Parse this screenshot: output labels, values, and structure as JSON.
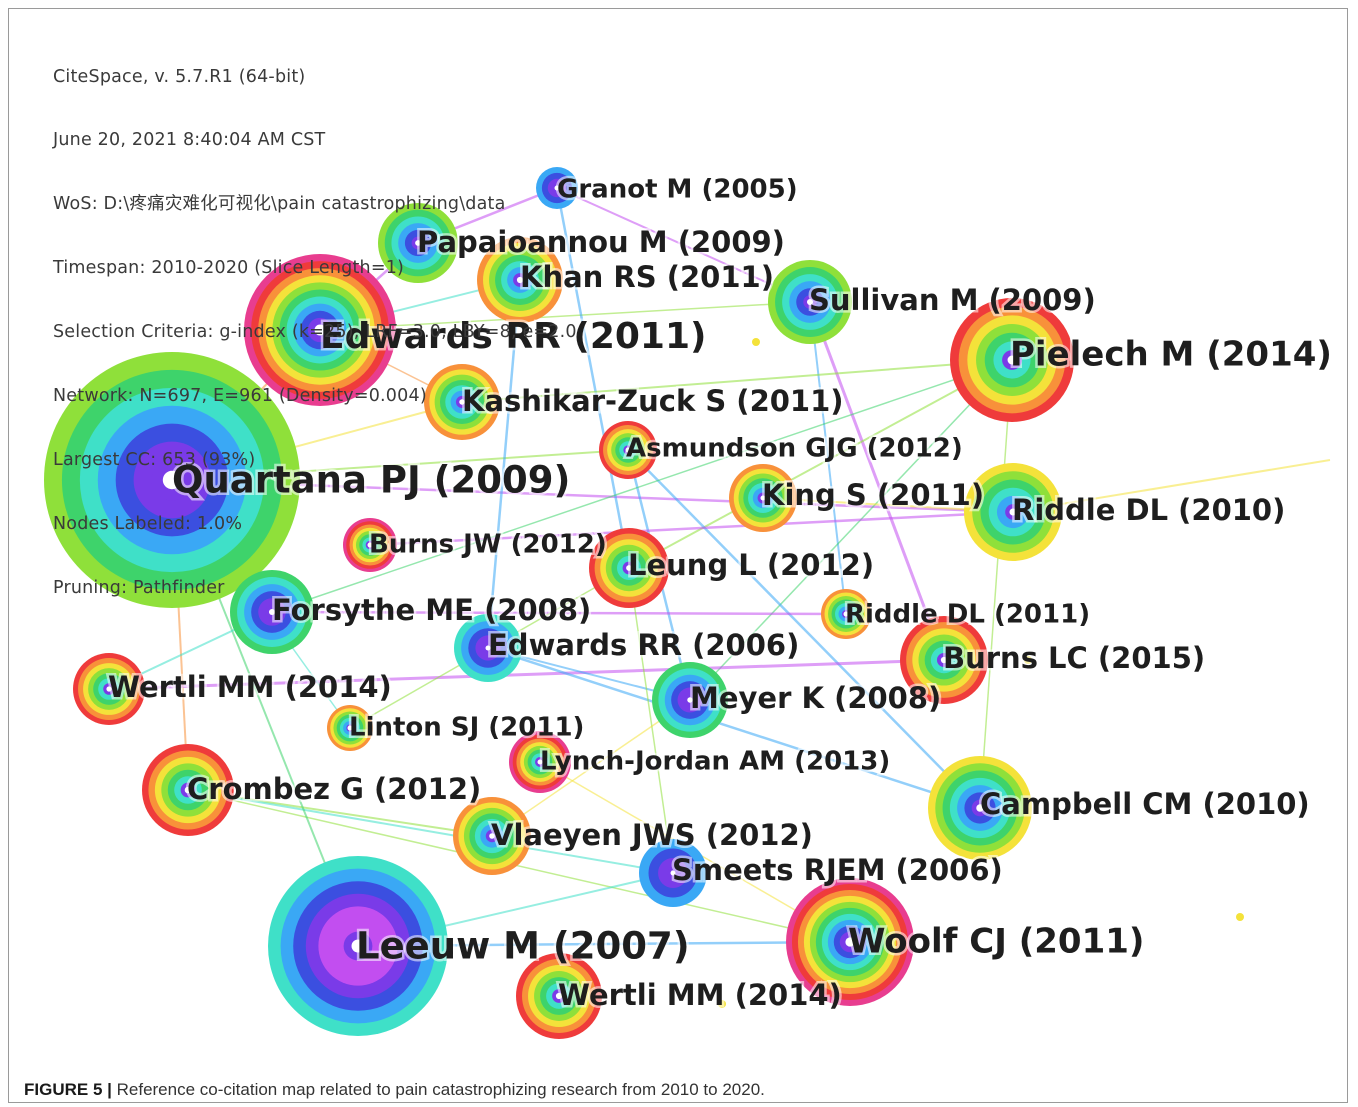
{
  "info": {
    "lines": [
      "CiteSpace, v. 5.7.R1 (64-bit)",
      "June 20, 2021 8:40:04 AM CST",
      "WoS: D:\\疼痛灾难化可视化\\pain catastrophizing\\data",
      "Timespan: 2010-2020 (Slice Length=1)",
      "Selection Criteria: g-index (k=25), LRF=3.0, LBY=8, e=2.0",
      "Network: N=697, E=961 (Density=0.004)",
      "Largest CC: 653 (93%)",
      "Nodes Labeled: 1.0%",
      "Pruning: Pathfinder"
    ]
  },
  "caption": {
    "label": "FIGURE 5 |",
    "text": " Reference co-citation map related to pain catastrophizing research from 2010 to 2020."
  },
  "ring_palette": [
    "#e83d8f",
    "#ef3b3b",
    "#f8913a",
    "#f4e23a",
    "#8fe03a",
    "#3ed36b",
    "#3fe0c8",
    "#3aa8f5",
    "#3b4fe0",
    "#7a3be8",
    "#c24ef0"
  ],
  "nodes": [
    {
      "label": "Quartana PJ (2009)",
      "outer_ring": "#8fe03a",
      "ring_count": 6
    },
    {
      "label": "Edwards RR (2011)",
      "outer_ring": "#e83d8f",
      "ring_count": 9
    },
    {
      "label": "Leeuw M (2007)",
      "outer_ring": "#3fe0c8",
      "ring_count": 6
    },
    {
      "label": "Pielech M (2014)",
      "outer_ring": "#ef3b3b",
      "ring_count": 6
    },
    {
      "label": "Woolf CJ (2011)",
      "outer_ring": "#e83d8f",
      "ring_count": 9
    },
    {
      "label": "Papaioannou M (2009)",
      "outer_ring": "#8fe03a",
      "ring_count": 5
    },
    {
      "label": "Khan RS (2011)",
      "outer_ring": "#f8913a",
      "ring_count": 6
    },
    {
      "label": "Sullivan M (2009)",
      "outer_ring": "#8fe03a",
      "ring_count": 5
    },
    {
      "label": "Granot M (2005)",
      "outer_ring": "#3aa8f5",
      "ring_count": 3
    },
    {
      "label": "Kashikar-Zuck S (2011)",
      "outer_ring": "#f8913a",
      "ring_count": 6
    },
    {
      "label": "Asmundson GJG (2012)",
      "outer_ring": "#ef3b3b",
      "ring_count": 6
    },
    {
      "label": "King S (2011)",
      "outer_ring": "#f8913a",
      "ring_count": 6
    },
    {
      "label": "Riddle DL (2010)",
      "outer_ring": "#f4e23a",
      "ring_count": 5
    },
    {
      "label": "Burns JW (2012)",
      "outer_ring": "#e83d8f",
      "ring_count": 7
    },
    {
      "label": "Leung L (2012)",
      "outer_ring": "#ef3b3b",
      "ring_count": 6
    },
    {
      "label": "Forsythe ME (2008)",
      "outer_ring": "#3ed36b",
      "ring_count": 5
    },
    {
      "label": "Riddle DL (2011)",
      "outer_ring": "#f8913a",
      "ring_count": 6
    },
    {
      "label": "Edwards RR (2006)",
      "outer_ring": "#3fe0c8",
      "ring_count": 4
    },
    {
      "label": "Burns LC (2015)",
      "outer_ring": "#ef3b3b",
      "ring_count": 6
    },
    {
      "label": "Wertli MM (2014)",
      "outer_ring": "#ef3b3b",
      "ring_count": 6
    },
    {
      "label": "Meyer K (2008)",
      "outer_ring": "#3ed36b",
      "ring_count": 5
    },
    {
      "label": "Linton SJ (2011)",
      "outer_ring": "#f8913a",
      "ring_count": 6
    },
    {
      "label": "Lynch-Jordan AM (2013)",
      "outer_ring": "#e83d8f",
      "ring_count": 7
    },
    {
      "label": "Crombez G (2012)",
      "outer_ring": "#ef3b3b",
      "ring_count": 6
    },
    {
      "label": "Campbell CM (2010)",
      "outer_ring": "#f4e23a",
      "ring_count": 6
    },
    {
      "label": "Vlaeyen JWS (2012)",
      "outer_ring": "#f8913a",
      "ring_count": 6
    },
    {
      "label": "Smeets RJEM (2006)",
      "outer_ring": "#3aa8f5",
      "ring_count": 3
    },
    {
      "label": "Wertli MM (2014)",
      "outer_ring": "#ef3b3b",
      "ring_count": 6
    }
  ]
}
